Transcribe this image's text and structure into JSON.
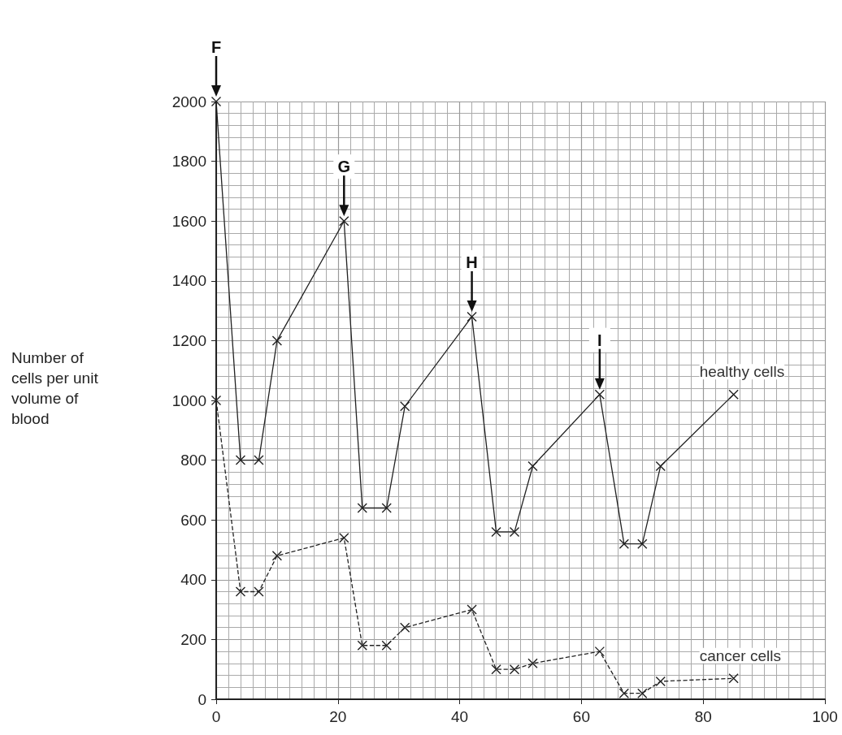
{
  "chart_data": {
    "type": "line",
    "ylabel": "Number of cells per unit volume of blood",
    "x": [
      0,
      4,
      7,
      10,
      21,
      24,
      28,
      31,
      42,
      46,
      49,
      52,
      63,
      67,
      70,
      73,
      85
    ],
    "series": [
      {
        "name": "healthy cells",
        "color": "#222222",
        "line_style": "solid",
        "values": [
          2000,
          800,
          800,
          1200,
          1600,
          640,
          640,
          980,
          1280,
          560,
          560,
          780,
          1020,
          520,
          520,
          780,
          1020
        ]
      },
      {
        "name": "cancer cells",
        "color": "#222222",
        "line_style": "dashed",
        "values": [
          1000,
          360,
          360,
          480,
          540,
          180,
          180,
          240,
          300,
          100,
          100,
          120,
          160,
          20,
          20,
          60,
          70
        ]
      }
    ],
    "annotations": [
      {
        "text": "F",
        "x": 0,
        "y": 2000
      },
      {
        "text": "G",
        "x": 21,
        "y": 1600
      },
      {
        "text": "H",
        "x": 42,
        "y": 1280
      },
      {
        "text": "I",
        "x": 63,
        "y": 1020
      }
    ],
    "xlim": [
      0,
      100
    ],
    "xticks": [
      0,
      20,
      40,
      60,
      80,
      100
    ],
    "ylim": [
      0,
      2000
    ],
    "yticks": [
      0,
      200,
      400,
      600,
      800,
      1000,
      1200,
      1400,
      1600,
      1800,
      2000
    ],
    "grid": true,
    "marker": "cross",
    "legend": false
  }
}
